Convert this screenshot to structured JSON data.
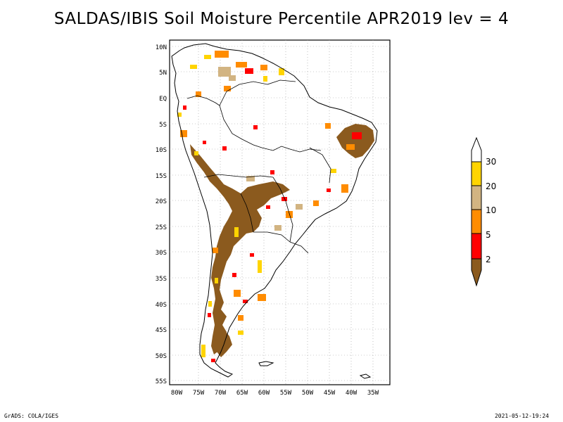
{
  "title": "SALDAS/IBIS Soil Moisture Percentile APR2019 lev = 4",
  "map": {
    "region": "South America",
    "lon_labels": [
      "80W",
      "75W",
      "70W",
      "65W",
      "60W",
      "55W",
      "50W",
      "45W",
      "40W",
      "35W"
    ],
    "lat_labels": [
      "10N",
      "5N",
      "EQ",
      "5S",
      "10S",
      "15S",
      "20S",
      "25S",
      "30S",
      "35S",
      "40S",
      "45S",
      "50S",
      "55S"
    ],
    "grid": true
  },
  "legend": {
    "labels": [
      "30",
      "20",
      "10",
      "5",
      "2"
    ],
    "colors": {
      "above_30": "#ffffff",
      "20_30": "#ffd400",
      "10_20": "#d2b482",
      "5_10": "#ff8c00",
      "2_5": "#ff0000",
      "below_2": "#8b5a1e"
    }
  },
  "footer": {
    "left": "GrADS: COLA/IGES",
    "right": "2021-05-12-19:24"
  }
}
